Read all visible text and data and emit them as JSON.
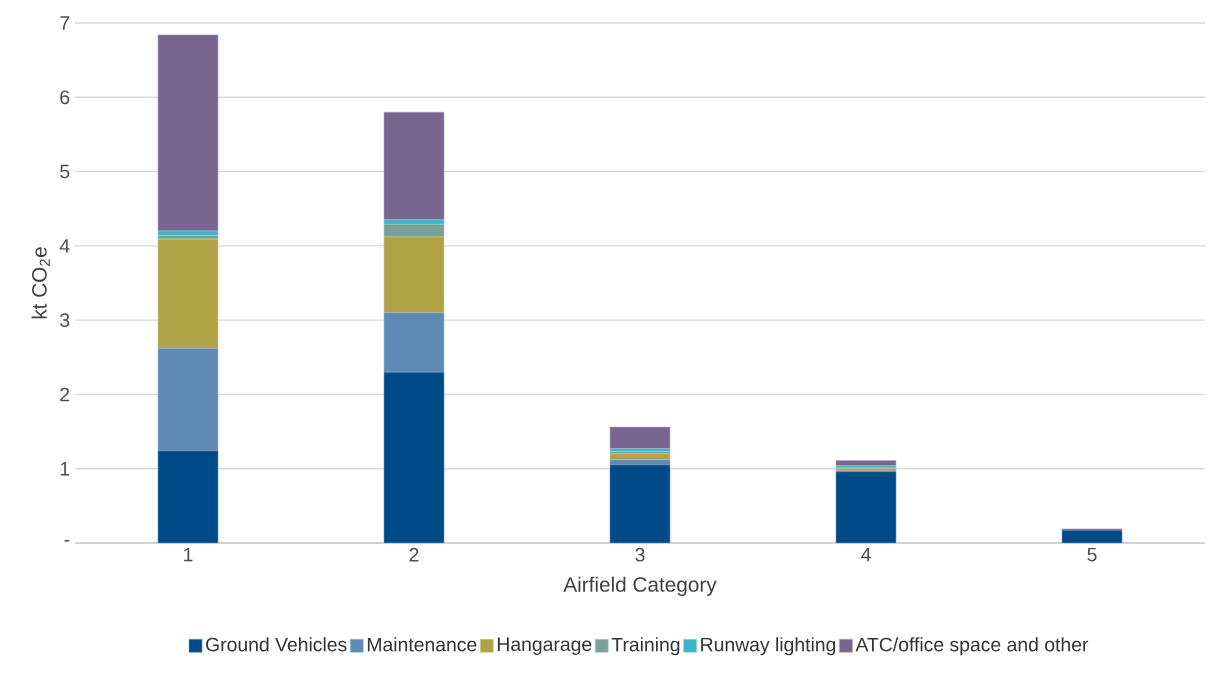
{
  "chart_data": {
    "type": "bar",
    "stacked": true,
    "xlabel": "Airfield Category",
    "ylabel": "kt CO$_{2}$e",
    "categories": [
      "1",
      "2",
      "3",
      "4",
      "5"
    ],
    "series": [
      {
        "name": "Ground Vehicles",
        "color": "#004a87",
        "values": [
          1.24,
          2.3,
          1.05,
          0.96,
          0.17
        ]
      },
      {
        "name": "Maintenance",
        "color": "#5f8ab3",
        "values": [
          1.38,
          0.8,
          0.07,
          0.01,
          0
        ]
      },
      {
        "name": "Hangarage",
        "color": "#afa346",
        "values": [
          1.47,
          1.02,
          0.08,
          0.03,
          0
        ]
      },
      {
        "name": "Training",
        "color": "#7aa197",
        "values": [
          0.05,
          0.17,
          0.03,
          0.01,
          0
        ]
      },
      {
        "name": "Runway lighting",
        "color": "#3eb4cc",
        "values": [
          0.06,
          0.06,
          0.04,
          0.03,
          0
        ]
      },
      {
        "name": "ATC/office space and other",
        "color": "#786690",
        "values": [
          2.64,
          1.45,
          0.29,
          0.07,
          0.02
        ]
      }
    ],
    "ylim": [
      0,
      7
    ],
    "yticks": [
      {
        "value": 0,
        "label": "-"
      },
      1,
      2,
      3,
      4,
      5,
      6,
      7
    ],
    "grid": "y",
    "legend": "bottom"
  }
}
